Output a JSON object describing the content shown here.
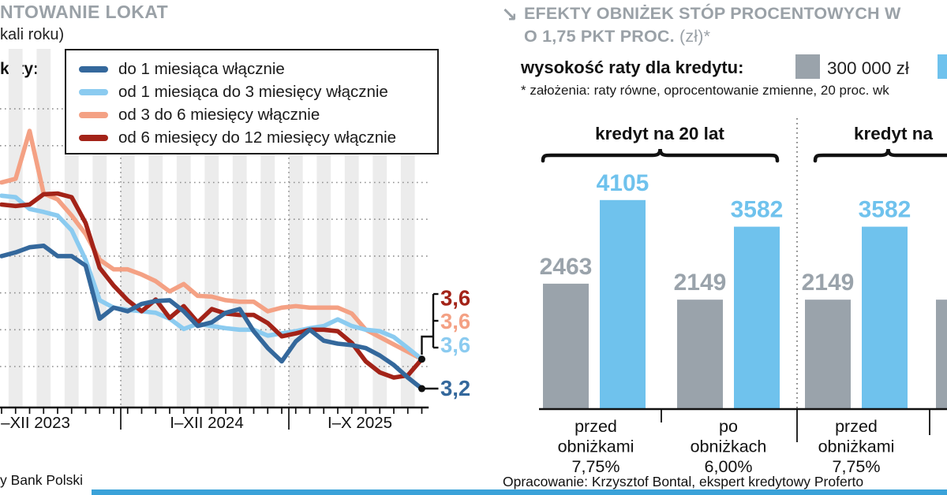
{
  "left_chart": {
    "title": "NTOWANIE LOKAT",
    "subtitle": "kali roku)",
    "legend_prefix": "katy:",
    "source": "y Bank Polski",
    "legend": [
      {
        "label": "do 1 miesiąca włącznie",
        "color": "#34689c"
      },
      {
        "label": "od 1 miesiąca do 3 miesięcy włącznie",
        "color": "#8bcbf0"
      },
      {
        "label": "od 3 do 6 miesięcy włącznie",
        "color": "#f4a184"
      },
      {
        "label": "od 6 miesięcy do 12 miesięcy włącznie",
        "color": "#a32318"
      }
    ]
  },
  "right_chart": {
    "header": {
      "arrow": "↘",
      "title_line1": "EFEKTY OBNIŻEK STÓP PROCENTOWYCH W",
      "title_line2_bold": "O 1,75 PKT PROC.",
      "title_line2_rest": " (zł)*"
    },
    "legend_label": "wysokość raty dla kredytu:",
    "legend_value_1": "300 000 zł",
    "footnote": "* założenia: raty równe, oprocentowanie zmienne, 20 proc. wk",
    "credit": "Opracowanie: Krzysztof Bontal, ekspert kredytowy Proferto"
  },
  "chart_data": [
    {
      "type": "line",
      "title": "NTOWANIE LOKAT",
      "subtitle": "kali roku)",
      "x_axis_segments": [
        "–XII 2023",
        "I–XII 2024",
        "I–X 2025"
      ],
      "x_range": "IV 2023 – X 2025, dane miesięczne",
      "ylim": [
        3.0,
        7.8
      ],
      "grid_step": 0.5,
      "grid_values": [
        3.5,
        4.0,
        4.5,
        5.0,
        5.5,
        6.0,
        6.5,
        7.0
      ],
      "series": [
        {
          "name": "do 1 miesiąca włącznie",
          "color": "#34689c",
          "values": [
            5.0,
            5.05,
            5.12,
            5.14,
            5.0,
            5.0,
            4.87,
            4.15,
            4.3,
            4.25,
            4.35,
            4.39,
            4.4,
            4.25,
            4.05,
            4.1,
            4.23,
            4.28,
            3.98,
            3.75,
            3.57,
            3.84,
            4.0,
            3.85,
            3.81,
            3.79,
            3.75,
            3.65,
            3.52,
            3.35,
            3.2
          ]
        },
        {
          "name": "od 1 miesiąca do 3 miesięcy włącznie",
          "color": "#8bcbf0",
          "values": [
            5.82,
            5.8,
            5.64,
            5.6,
            5.55,
            5.35,
            4.95,
            4.4,
            4.3,
            4.27,
            4.25,
            4.23,
            4.15,
            4.01,
            4.08,
            4.05,
            4.02,
            4.0,
            4.0,
            3.92,
            3.95,
            3.98,
            4.02,
            4.05,
            4.14,
            4.05,
            4.0,
            3.98,
            3.9,
            3.75,
            3.6
          ]
        },
        {
          "name": "od 3 do 6 miesięcy włącznie",
          "color": "#f4a184",
          "values": [
            6.0,
            6.05,
            6.7,
            5.85,
            5.77,
            5.55,
            5.3,
            4.95,
            4.82,
            4.82,
            4.75,
            4.66,
            4.52,
            4.62,
            4.46,
            4.45,
            4.4,
            4.38,
            4.38,
            4.25,
            4.3,
            4.32,
            4.3,
            4.3,
            4.3,
            4.22,
            4.0,
            3.9,
            3.8,
            3.7,
            3.6
          ]
        },
        {
          "name": "od 6 miesięcy do 12 miesięcy włącznie",
          "color": "#a32318",
          "values": [
            5.7,
            5.68,
            5.7,
            5.84,
            5.85,
            5.8,
            5.45,
            4.84,
            4.6,
            4.4,
            4.25,
            4.41,
            4.16,
            4.32,
            4.1,
            4.28,
            4.22,
            4.2,
            4.2,
            4.09,
            3.91,
            3.95,
            4.0,
            4.0,
            3.98,
            3.82,
            3.57,
            3.42,
            3.35,
            3.38,
            3.6
          ]
        }
      ],
      "end_labels": [
        {
          "text": "3,6",
          "color": "#a32318"
        },
        {
          "text": "3,6",
          "color": "#f4a184"
        },
        {
          "text": "3,6",
          "color": "#8bcbf0"
        },
        {
          "text": "3,2",
          "color": "#34689c"
        }
      ]
    },
    {
      "type": "bar",
      "title": "EFEKTY OBNIŻEK STÓP PROCENTOWYCH W O 1,75 PKT PROC. (zł)*",
      "series": [
        {
          "name": "300 000 zł",
          "color": "#9aa3ab"
        },
        {
          "name": "",
          "color": "#6fc2ed"
        }
      ],
      "sections": [
        {
          "label": "kredyt na 20 lat",
          "groups": [
            {
              "label_lines": [
                "przed",
                "obniżkami",
                "7,75%"
              ],
              "values": [
                2463,
                4105
              ]
            },
            {
              "label_lines": [
                "po",
                "obniżkach",
                "6,00%"
              ],
              "values": [
                2149,
                3582
              ]
            }
          ]
        },
        {
          "label": "kredyt na",
          "groups": [
            {
              "label_lines": [
                "przed",
                "obniżkami",
                "7,75%"
              ],
              "values": [
                2149,
                3582
              ]
            }
          ]
        }
      ]
    }
  ]
}
